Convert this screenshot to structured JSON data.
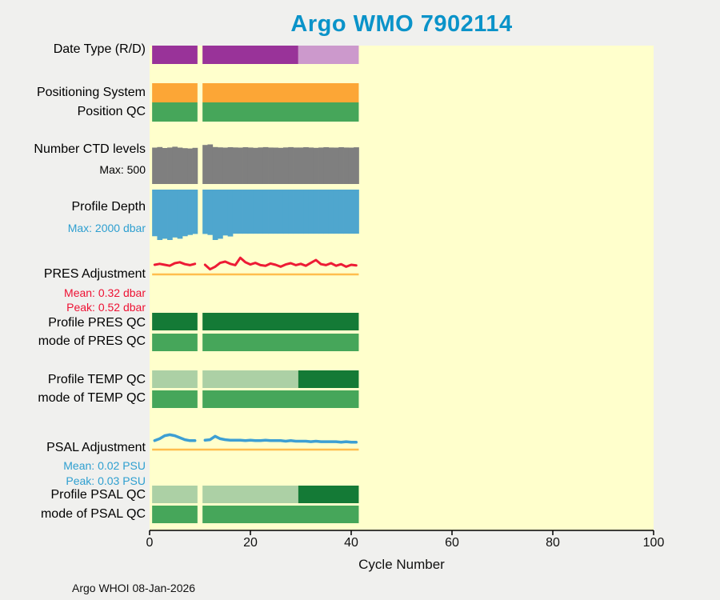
{
  "footer": "Argo WHOI 08-Jan-2026",
  "colors": {
    "page_bg": "#F0F0EE",
    "plot_bg": "#FFFFCC",
    "title": "#0A93C9",
    "axis": "#000000",
    "accent_red": "#EE1133",
    "accent_blue": "#2E9FD0"
  },
  "row_labels": [
    {
      "id": "date-type",
      "text": "Date Type (R/D)",
      "color": "#000000"
    },
    {
      "id": "positioning-system",
      "text": "Positioning System",
      "color": "#000000"
    },
    {
      "id": "position-qc",
      "text": "Position QC",
      "color": "#000000"
    },
    {
      "id": "ctd-levels",
      "text": "Number CTD levels",
      "color": "#000000"
    },
    {
      "id": "ctd-max",
      "text": "Max: 500",
      "color": "#000000"
    },
    {
      "id": "profile-depth",
      "text": "Profile Depth",
      "color": "#000000"
    },
    {
      "id": "depth-max",
      "text": "Max: 2000 dbar",
      "color": "#2E9FD0"
    },
    {
      "id": "pres-adjustment",
      "text": "PRES Adjustment",
      "color": "#000000"
    },
    {
      "id": "pres-mean",
      "text": "Mean: 0.32 dbar",
      "color": "#EE1133"
    },
    {
      "id": "pres-peak",
      "text": "Peak: 0.52 dbar",
      "color": "#EE1133"
    },
    {
      "id": "profile-pres-qc",
      "text": "Profile PRES QC",
      "color": "#000000"
    },
    {
      "id": "mode-pres-qc",
      "text": "mode of PRES QC",
      "color": "#000000"
    },
    {
      "id": "profile-temp-qc",
      "text": "Profile TEMP QC",
      "color": "#000000"
    },
    {
      "id": "mode-temp-qc",
      "text": "mode of TEMP QC",
      "color": "#000000"
    },
    {
      "id": "psal-adjustment",
      "text": "PSAL Adjustment",
      "color": "#000000"
    },
    {
      "id": "psal-mean",
      "text": "Mean: 0.02 PSU",
      "color": "#2E9FD0"
    },
    {
      "id": "psal-peak",
      "text": "Peak: 0.03 PSU",
      "color": "#2E9FD0"
    },
    {
      "id": "profile-psal-qc",
      "text": "Profile PSAL QC",
      "color": "#000000"
    },
    {
      "id": "mode-psal-qc",
      "text": "mode of PSAL QC",
      "color": "#000000"
    }
  ],
  "chart_data": {
    "type": "status-bars-and-lines",
    "title": "Argo WMO 7902114",
    "x": {
      "label": "Cycle Number",
      "min": 0,
      "max": 100,
      "ticks": [
        0,
        20,
        40,
        60,
        80,
        100
      ]
    },
    "cycles": {
      "first": 0.5,
      "last": 41.5,
      "gap": [
        9.5,
        10.5
      ],
      "note": "cycle 10 missing"
    },
    "rows": [
      {
        "id": "date_type",
        "kind": "bar",
        "segments": [
          {
            "from": 0.5,
            "to": 29.5,
            "color": "#993399"
          },
          {
            "from": 29.5,
            "to": 41.5,
            "color": "#CC99CC"
          }
        ]
      },
      {
        "id": "positioning_system",
        "kind": "bar",
        "segments": [
          {
            "from": 0.5,
            "to": 41.5,
            "color": "#FCA636"
          }
        ]
      },
      {
        "id": "position_qc",
        "kind": "bar",
        "segments": [
          {
            "from": 0.5,
            "to": 41.5,
            "color": "#46A65A"
          }
        ]
      },
      {
        "id": "ctd_levels",
        "kind": "varbar",
        "max": 500,
        "color": "#7F7F7F",
        "values": [
          455,
          462,
          450,
          456,
          466,
          455,
          448,
          444,
          452,
          null,
          488,
          495,
          462,
          458,
          455,
          460,
          457,
          455,
          460,
          456,
          452,
          457,
          461,
          456,
          455,
          452,
          457,
          461,
          456,
          456,
          460,
          456,
          452,
          456,
          460,
          456,
          455,
          460,
          456,
          455,
          459
        ]
      },
      {
        "id": "profile_depth",
        "kind": "varbar_down",
        "max": 2000,
        "color": "#4FA6CE",
        "values": [
          1850,
          2000,
          1950,
          2000,
          1900,
          1950,
          1850,
          1800,
          1760,
          null,
          1760,
          1800,
          2000,
          1950,
          1820,
          1860,
          1750,
          1750,
          1750,
          1750,
          1750,
          1750,
          1750,
          1750,
          1750,
          1750,
          1750,
          1750,
          1750,
          1750,
          1750,
          1750,
          1750,
          1750,
          1750,
          1750,
          1750,
          1750,
          1750,
          1750,
          1750
        ]
      },
      {
        "id": "pres_adjustment",
        "kind": "line",
        "color": "#ED1B35",
        "zero_line_color": "#FFBE4D",
        "mean": 0.32,
        "peak": 0.52,
        "unit": "dbar",
        "values": [
          0.3,
          0.33,
          0.3,
          0.27,
          0.35,
          0.38,
          0.32,
          0.29,
          0.33,
          null,
          0.3,
          0.16,
          0.24,
          0.36,
          0.4,
          0.33,
          0.29,
          0.52,
          0.38,
          0.31,
          0.36,
          0.29,
          0.27,
          0.34,
          0.3,
          0.24,
          0.31,
          0.35,
          0.29,
          0.33,
          0.27,
          0.36,
          0.45,
          0.32,
          0.29,
          0.35,
          0.27,
          0.32,
          0.24,
          0.3,
          0.28
        ]
      },
      {
        "id": "profile_pres_qc",
        "kind": "bar",
        "segments": [
          {
            "from": 0.5,
            "to": 41.5,
            "color": "#147A36"
          }
        ]
      },
      {
        "id": "mode_pres_qc",
        "kind": "bar",
        "segments": [
          {
            "from": 0.5,
            "to": 41.5,
            "color": "#46A65A"
          }
        ]
      },
      {
        "id": "profile_temp_qc",
        "kind": "bar",
        "segments": [
          {
            "from": 0.5,
            "to": 29.5,
            "color": "#ACD0A5"
          },
          {
            "from": 29.5,
            "to": 41.5,
            "color": "#147A36"
          }
        ]
      },
      {
        "id": "mode_temp_qc",
        "kind": "bar",
        "segments": [
          {
            "from": 0.5,
            "to": 41.5,
            "color": "#46A65A"
          }
        ]
      },
      {
        "id": "psal_adjustment",
        "kind": "line",
        "color": "#3D9FD3",
        "zero_line_color": "#FFBE4D",
        "mean": 0.02,
        "peak": 0.03,
        "unit": "PSU",
        "values": [
          0.018,
          0.022,
          0.028,
          0.03,
          0.028,
          0.024,
          0.02,
          0.018,
          0.018,
          null,
          0.019,
          0.02,
          0.027,
          0.022,
          0.02,
          0.019,
          0.019,
          0.019,
          0.018,
          0.019,
          0.018,
          0.018,
          0.019,
          0.018,
          0.018,
          0.018,
          0.017,
          0.018,
          0.017,
          0.017,
          0.017,
          0.016,
          0.017,
          0.016,
          0.016,
          0.016,
          0.016,
          0.015,
          0.016,
          0.015,
          0.015
        ]
      },
      {
        "id": "profile_psal_qc",
        "kind": "bar",
        "segments": [
          {
            "from": 0.5,
            "to": 29.5,
            "color": "#ACD0A5"
          },
          {
            "from": 29.5,
            "to": 41.5,
            "color": "#147A36"
          }
        ]
      },
      {
        "id": "mode_psal_qc",
        "kind": "bar",
        "segments": [
          {
            "from": 0.5,
            "to": 41.5,
            "color": "#46A65A"
          }
        ]
      }
    ]
  }
}
